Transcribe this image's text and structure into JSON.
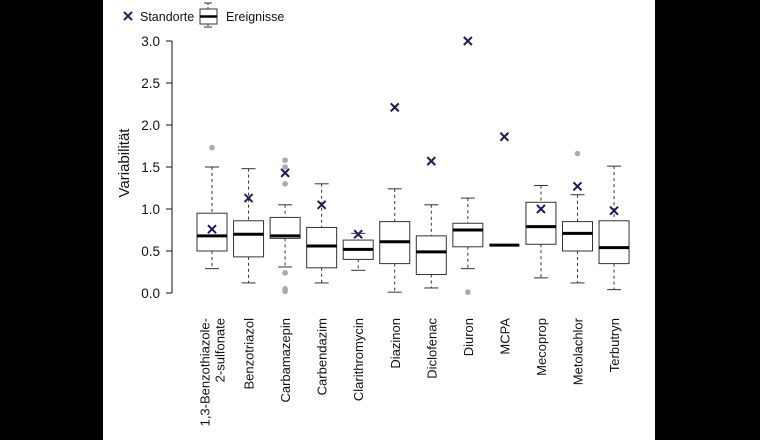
{
  "chart_data": {
    "type": "boxplot",
    "title": "",
    "xlabel": "",
    "ylabel": "Variabilität",
    "ylim": [
      0,
      3.0
    ],
    "yticks": [
      "0.0",
      "0.5",
      "1.0",
      "1.5",
      "2.0",
      "2.5",
      "3.0"
    ],
    "legend": {
      "position": "top-left",
      "entries": [
        {
          "name": "Standorte",
          "marker": "cross"
        },
        {
          "name": "Ereignisse",
          "marker": "box"
        }
      ]
    },
    "colors": {
      "marker": "#1f1a5c",
      "outlier": "#aaaaaa",
      "median": "#000000",
      "box": "#333333"
    },
    "categories": [
      "1,3-Benzothiazole-2-sulfonate",
      "Benzotriazol",
      "Carbamazepin",
      "Carbendazim",
      "Clarithromycin",
      "Diazinon",
      "Diclofenac",
      "Diuron",
      "MCPA",
      "Mecoprop",
      "Metolachlor",
      "Terbutryn"
    ],
    "label_lines": [
      [
        "1,3-Benzothiazole-",
        "2-sulfonate"
      ],
      [
        "Benzotriazol"
      ],
      [
        "Carbamazepin"
      ],
      [
        "Carbendazim"
      ],
      [
        "Clarithromycin"
      ],
      [
        "Diazinon"
      ],
      [
        "Diclofenac"
      ],
      [
        "Diuron"
      ],
      [
        "MCPA"
      ],
      [
        "Mecoprop"
      ],
      [
        "Metolachlor"
      ],
      [
        "Terbutryn"
      ]
    ],
    "series": [
      {
        "name": "Ereignisse",
        "boxes": [
          {
            "min": 0.29,
            "q1": 0.5,
            "median": 0.68,
            "q3": 0.95,
            "max": 1.5,
            "outliers": [
              1.73
            ]
          },
          {
            "min": 0.12,
            "q1": 0.43,
            "median": 0.7,
            "q3": 0.86,
            "max": 1.48,
            "outliers": []
          },
          {
            "min": 0.31,
            "q1": 0.65,
            "median": 0.68,
            "q3": 0.9,
            "max": 1.05,
            "outliers": [
              1.58,
              1.5,
              1.3,
              0.24,
              0.05,
              0.02
            ]
          },
          {
            "min": 0.12,
            "q1": 0.3,
            "median": 0.56,
            "q3": 0.78,
            "max": 1.3,
            "outliers": []
          },
          {
            "min": 0.27,
            "q1": 0.4,
            "median": 0.52,
            "q3": 0.63,
            "max": 0.71,
            "outliers": []
          },
          {
            "min": 0.01,
            "q1": 0.35,
            "median": 0.61,
            "q3": 0.85,
            "max": 1.24,
            "outliers": []
          },
          {
            "min": 0.06,
            "q1": 0.22,
            "median": 0.49,
            "q3": 0.68,
            "max": 1.05,
            "outliers": []
          },
          {
            "min": 0.29,
            "q1": 0.55,
            "median": 0.75,
            "q3": 0.83,
            "max": 1.13,
            "outliers": [
              0.01
            ]
          },
          {
            "min": 0.57,
            "q1": 0.57,
            "median": 0.57,
            "q3": 0.57,
            "max": 0.57,
            "outliers": []
          },
          {
            "min": 0.18,
            "q1": 0.58,
            "median": 0.79,
            "q3": 1.08,
            "max": 1.28,
            "outliers": []
          },
          {
            "min": 0.12,
            "q1": 0.5,
            "median": 0.71,
            "q3": 0.85,
            "max": 1.17,
            "outliers": [
              1.66
            ]
          },
          {
            "min": 0.04,
            "q1": 0.35,
            "median": 0.54,
            "q3": 0.86,
            "max": 1.51,
            "outliers": []
          }
        ]
      },
      {
        "name": "Standorte",
        "values": [
          0.76,
          1.13,
          1.43,
          1.05,
          0.7,
          2.21,
          1.57,
          3.0,
          1.86,
          1.0,
          1.27,
          0.98
        ]
      }
    ]
  }
}
